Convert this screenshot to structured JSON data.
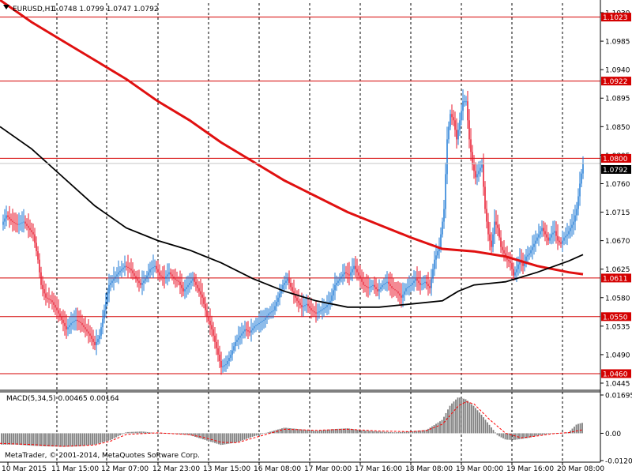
{
  "header": {
    "symbol": "EURUSD,H1",
    "ohlc": "1.0748 1.0799 1.0747 1.0792"
  },
  "macd": {
    "label": "MACD(5,34,5) 0.00465 0.00164",
    "ticks": [
      "0.01695",
      "0.00",
      "-0.01209"
    ]
  },
  "copyright": "MetaTrader, © 2001-2014, MetaQuotes Software Corp.",
  "colors": {
    "bull": "#1e7ad6",
    "bear": "#e8152a",
    "ma_fast": "#e01010",
    "ma_slow": "#000000",
    "level": "#d40000",
    "grid": "#000000",
    "histogram": "#808080",
    "signal": "#ff0000"
  },
  "chart_data": {
    "type": "candlestick",
    "ylim": [
      1.0435,
      1.1045
    ],
    "grid": "vertical dotted",
    "price_ticks": [
      "1.1030",
      "1.0985",
      "1.0940",
      "1.0895",
      "1.0850",
      "1.0805",
      "1.0760",
      "1.0715",
      "1.0670",
      "1.0625",
      "1.0580",
      "1.0535",
      "1.0490",
      "1.0445"
    ],
    "time_labels": [
      "10 Mar 2015",
      "11 Mar 15:00",
      "12 Mar 07:00",
      "12 Mar 23:00",
      "13 Mar 15:00",
      "16 Mar 08:00",
      "17 Mar 00:00",
      "17 Mar 16:00",
      "18 Mar 08:00",
      "19 Mar 00:00",
      "19 Mar 16:00",
      "20 Mar 08:00"
    ],
    "levels": [
      "1.1023",
      "1.0922",
      "1.0800",
      "1.0611",
      "1.0550",
      "1.0460"
    ],
    "current_price": "1.0792",
    "price_path": [
      [
        0,
        1.069
      ],
      [
        8,
        1.071
      ],
      [
        15,
        1.07
      ],
      [
        22,
        1.0695
      ],
      [
        30,
        1.07
      ],
      [
        36,
        1.069
      ],
      [
        42,
        1.068
      ],
      [
        48,
        1.064
      ],
      [
        52,
        1.06
      ],
      [
        58,
        1.058
      ],
      [
        65,
        1.0575
      ],
      [
        72,
        1.056
      ],
      [
        78,
        1.0545
      ],
      [
        84,
        1.053
      ],
      [
        90,
        1.054
      ],
      [
        96,
        1.0545
      ],
      [
        102,
        1.054
      ],
      [
        108,
        1.053
      ],
      [
        114,
        1.052
      ],
      [
        120,
        1.0505
      ],
      [
        126,
        1.052
      ],
      [
        132,
        1.056
      ],
      [
        138,
        1.06
      ],
      [
        144,
        1.061
      ],
      [
        150,
        1.062
      ],
      [
        158,
        1.063
      ],
      [
        165,
        1.0625
      ],
      [
        172,
        1.061
      ],
      [
        178,
        1.06
      ],
      [
        184,
        1.061
      ],
      [
        190,
        1.0625
      ],
      [
        196,
        1.063
      ],
      [
        202,
        1.0615
      ],
      [
        208,
        1.061
      ],
      [
        214,
        1.062
      ],
      [
        220,
        1.061
      ],
      [
        226,
        1.0605
      ],
      [
        232,
        1.059
      ],
      [
        238,
        1.06
      ],
      [
        244,
        1.061
      ],
      [
        250,
        1.0595
      ],
      [
        256,
        1.058
      ],
      [
        262,
        1.055
      ],
      [
        268,
        1.053
      ],
      [
        274,
        1.05
      ],
      [
        280,
        1.047
      ],
      [
        286,
        1.0475
      ],
      [
        292,
        1.049
      ],
      [
        298,
        1.051
      ],
      [
        304,
        1.052
      ],
      [
        310,
        1.053
      ],
      [
        316,
        1.0525
      ],
      [
        322,
        1.0535
      ],
      [
        328,
        1.054
      ],
      [
        334,
        1.0545
      ],
      [
        340,
        1.0555
      ],
      [
        346,
        1.056
      ],
      [
        352,
        1.058
      ],
      [
        358,
        1.06
      ],
      [
        364,
        1.061
      ],
      [
        370,
        1.059
      ],
      [
        376,
        1.0575
      ],
      [
        382,
        1.0565
      ],
      [
        388,
        1.057
      ],
      [
        394,
        1.056
      ],
      [
        400,
        1.0555
      ],
      [
        406,
        1.056
      ],
      [
        412,
        1.0565
      ],
      [
        418,
        1.0575
      ],
      [
        424,
        1.06
      ],
      [
        430,
        1.061
      ],
      [
        436,
        1.062
      ],
      [
        442,
        1.0615
      ],
      [
        448,
        1.063
      ],
      [
        454,
        1.0615
      ],
      [
        460,
        1.06
      ],
      [
        466,
        1.0595
      ],
      [
        472,
        1.06
      ],
      [
        478,
        1.059
      ],
      [
        484,
        1.06
      ],
      [
        490,
        1.0605
      ],
      [
        496,
        1.0595
      ],
      [
        502,
        1.059
      ],
      [
        508,
        1.058
      ],
      [
        514,
        1.0595
      ],
      [
        520,
        1.06
      ],
      [
        526,
        1.061
      ],
      [
        532,
        1.06
      ],
      [
        538,
        1.0605
      ],
      [
        544,
        1.0595
      ],
      [
        550,
        1.064
      ],
      [
        556,
        1.066
      ],
      [
        562,
        1.072
      ],
      [
        566,
        1.083
      ],
      [
        570,
        1.087
      ],
      [
        574,
        1.086
      ],
      [
        578,
        1.083
      ],
      [
        582,
        1.086
      ],
      [
        586,
        1.089
      ],
      [
        590,
        1.089
      ],
      [
        594,
        1.083
      ],
      [
        598,
        1.079
      ],
      [
        602,
        1.077
      ],
      [
        606,
        1.078
      ],
      [
        610,
        1.079
      ],
      [
        614,
        1.072
      ],
      [
        618,
        1.068
      ],
      [
        622,
        1.066
      ],
      [
        626,
        1.07
      ],
      [
        630,
        1.069
      ],
      [
        634,
        1.066
      ],
      [
        638,
        1.065
      ],
      [
        642,
        1.064
      ],
      [
        646,
        1.0635
      ],
      [
        650,
        1.0615
      ],
      [
        654,
        1.0625
      ],
      [
        658,
        1.064
      ],
      [
        662,
        1.063
      ],
      [
        666,
        1.0645
      ],
      [
        670,
        1.065
      ],
      [
        674,
        1.066
      ],
      [
        678,
        1.067
      ],
      [
        682,
        1.068
      ],
      [
        686,
        1.069
      ],
      [
        690,
        1.068
      ],
      [
        694,
        1.067
      ],
      [
        698,
        1.068
      ],
      [
        702,
        1.0685
      ],
      [
        706,
        1.067
      ],
      [
        710,
        1.0665
      ],
      [
        714,
        1.0675
      ],
      [
        718,
        1.068
      ],
      [
        722,
        1.069
      ],
      [
        726,
        1.07
      ],
      [
        730,
        1.072
      ],
      [
        734,
        1.076
      ],
      [
        738,
        1.0792
      ]
    ],
    "ma_fast": [
      [
        0,
        1.105
      ],
      [
        40,
        1.1015
      ],
      [
        80,
        1.0985
      ],
      [
        120,
        1.0955
      ],
      [
        160,
        1.0925
      ],
      [
        200,
        1.089
      ],
      [
        240,
        1.086
      ],
      [
        280,
        1.0825
      ],
      [
        320,
        1.0795
      ],
      [
        360,
        1.0765
      ],
      [
        400,
        1.074
      ],
      [
        440,
        1.0715
      ],
      [
        480,
        1.0695
      ],
      [
        520,
        1.0675
      ],
      [
        560,
        1.0657
      ],
      [
        600,
        1.0653
      ],
      [
        640,
        1.0645
      ],
      [
        680,
        1.063
      ],
      [
        720,
        1.062
      ],
      [
        738,
        1.0617
      ]
    ],
    "ma_slow": [
      [
        0,
        1.085
      ],
      [
        40,
        1.0815
      ],
      [
        80,
        1.077
      ],
      [
        120,
        1.0725
      ],
      [
        160,
        1.069
      ],
      [
        200,
        1.067
      ],
      [
        240,
        1.0655
      ],
      [
        280,
        1.0635
      ],
      [
        320,
        1.061
      ],
      [
        360,
        1.059
      ],
      [
        400,
        1.0575
      ],
      [
        440,
        1.0565
      ],
      [
        480,
        1.0565
      ],
      [
        520,
        1.057
      ],
      [
        560,
        1.0575
      ],
      [
        580,
        1.059
      ],
      [
        600,
        1.06
      ],
      [
        640,
        1.0605
      ],
      [
        680,
        1.062
      ],
      [
        720,
        1.0638
      ],
      [
        738,
        1.0648
      ]
    ],
    "macd_hist": [
      [
        0,
        -0.005
      ],
      [
        20,
        -0.005
      ],
      [
        40,
        -0.0055
      ],
      [
        60,
        -0.0058
      ],
      [
        80,
        -0.006
      ],
      [
        100,
        -0.0058
      ],
      [
        120,
        -0.005
      ],
      [
        140,
        -0.003
      ],
      [
        160,
        0.0005
      ],
      [
        180,
        0.0008
      ],
      [
        200,
        0.0
      ],
      [
        220,
        -0.0002
      ],
      [
        240,
        -0.0008
      ],
      [
        260,
        -0.003
      ],
      [
        280,
        -0.0052
      ],
      [
        300,
        -0.004
      ],
      [
        320,
        -0.0015
      ],
      [
        340,
        0.0005
      ],
      [
        360,
        0.0025
      ],
      [
        380,
        0.0018
      ],
      [
        400,
        0.001
      ],
      [
        420,
        0.0018
      ],
      [
        440,
        0.0022
      ],
      [
        460,
        0.0012
      ],
      [
        480,
        0.0008
      ],
      [
        500,
        0.0004
      ],
      [
        520,
        0.0008
      ],
      [
        540,
        0.0015
      ],
      [
        560,
        0.006
      ],
      [
        570,
        0.0125
      ],
      [
        580,
        0.016
      ],
      [
        590,
        0.015
      ],
      [
        600,
        0.012
      ],
      [
        610,
        0.008
      ],
      [
        620,
        0.0035
      ],
      [
        630,
        -0.001
      ],
      [
        640,
        -0.0028
      ],
      [
        650,
        -0.003
      ],
      [
        660,
        -0.0025
      ],
      [
        670,
        -0.002
      ],
      [
        680,
        -0.001
      ],
      [
        690,
        -0.0005
      ],
      [
        700,
        0.0
      ],
      [
        710,
        0.0002
      ],
      [
        720,
        0.0005
      ],
      [
        730,
        0.004
      ],
      [
        738,
        0.0047
      ]
    ],
    "macd_signal": [
      [
        0,
        -0.0045
      ],
      [
        40,
        -0.005
      ],
      [
        80,
        -0.0058
      ],
      [
        120,
        -0.0052
      ],
      [
        140,
        -0.0035
      ],
      [
        160,
        -0.0005
      ],
      [
        200,
        0.0002
      ],
      [
        240,
        -0.0006
      ],
      [
        260,
        -0.002
      ],
      [
        280,
        -0.004
      ],
      [
        300,
        -0.0042
      ],
      [
        320,
        -0.0022
      ],
      [
        340,
        -0.0002
      ],
      [
        360,
        0.0018
      ],
      [
        400,
        0.0013
      ],
      [
        440,
        0.0018
      ],
      [
        480,
        0.001
      ],
      [
        520,
        0.0007
      ],
      [
        540,
        0.0012
      ],
      [
        560,
        0.004
      ],
      [
        580,
        0.012
      ],
      [
        590,
        0.014
      ],
      [
        600,
        0.013
      ],
      [
        620,
        0.006
      ],
      [
        640,
        0.0
      ],
      [
        660,
        -0.002
      ],
      [
        680,
        -0.0012
      ],
      [
        700,
        -0.0002
      ],
      [
        720,
        0.0003
      ],
      [
        738,
        0.0016
      ]
    ]
  }
}
